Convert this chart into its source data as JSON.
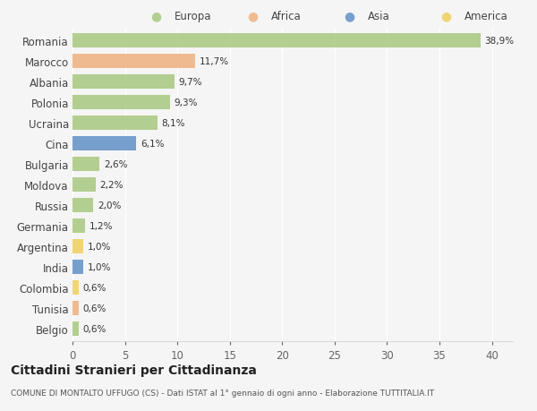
{
  "countries": [
    "Romania",
    "Marocco",
    "Albania",
    "Polonia",
    "Ucraina",
    "Cina",
    "Bulgaria",
    "Moldova",
    "Russia",
    "Germania",
    "Argentina",
    "India",
    "Colombia",
    "Tunisia",
    "Belgio"
  ],
  "values": [
    38.9,
    11.7,
    9.7,
    9.3,
    8.1,
    6.1,
    2.6,
    2.2,
    2.0,
    1.2,
    1.0,
    1.0,
    0.6,
    0.6,
    0.6
  ],
  "labels": [
    "38,9%",
    "11,7%",
    "9,7%",
    "9,3%",
    "8,1%",
    "6,1%",
    "2,6%",
    "2,2%",
    "2,0%",
    "1,2%",
    "1,0%",
    "1,0%",
    "0,6%",
    "0,6%",
    "0,6%"
  ],
  "continents": [
    "Europa",
    "Africa",
    "Europa",
    "Europa",
    "Europa",
    "Asia",
    "Europa",
    "Europa",
    "Europa",
    "Europa",
    "America",
    "Asia",
    "America",
    "Africa",
    "Europa"
  ],
  "continent_colors": {
    "Europa": "#a8c880",
    "Africa": "#f0b080",
    "Asia": "#6090c8",
    "America": "#f0d060"
  },
  "legend_order": [
    "Europa",
    "Africa",
    "Asia",
    "America"
  ],
  "title": "Cittadini Stranieri per Cittadinanza",
  "subtitle": "COMUNE DI MONTALTO UFFUGO (CS) - Dati ISTAT al 1° gennaio di ogni anno - Elaborazione TUTTITALIA.IT",
  "xlim": [
    0,
    42
  ],
  "xticks": [
    0,
    5,
    10,
    15,
    20,
    25,
    30,
    35,
    40
  ],
  "background_color": "#f5f5f5",
  "grid_color": "#ffffff",
  "bar_height": 0.7
}
